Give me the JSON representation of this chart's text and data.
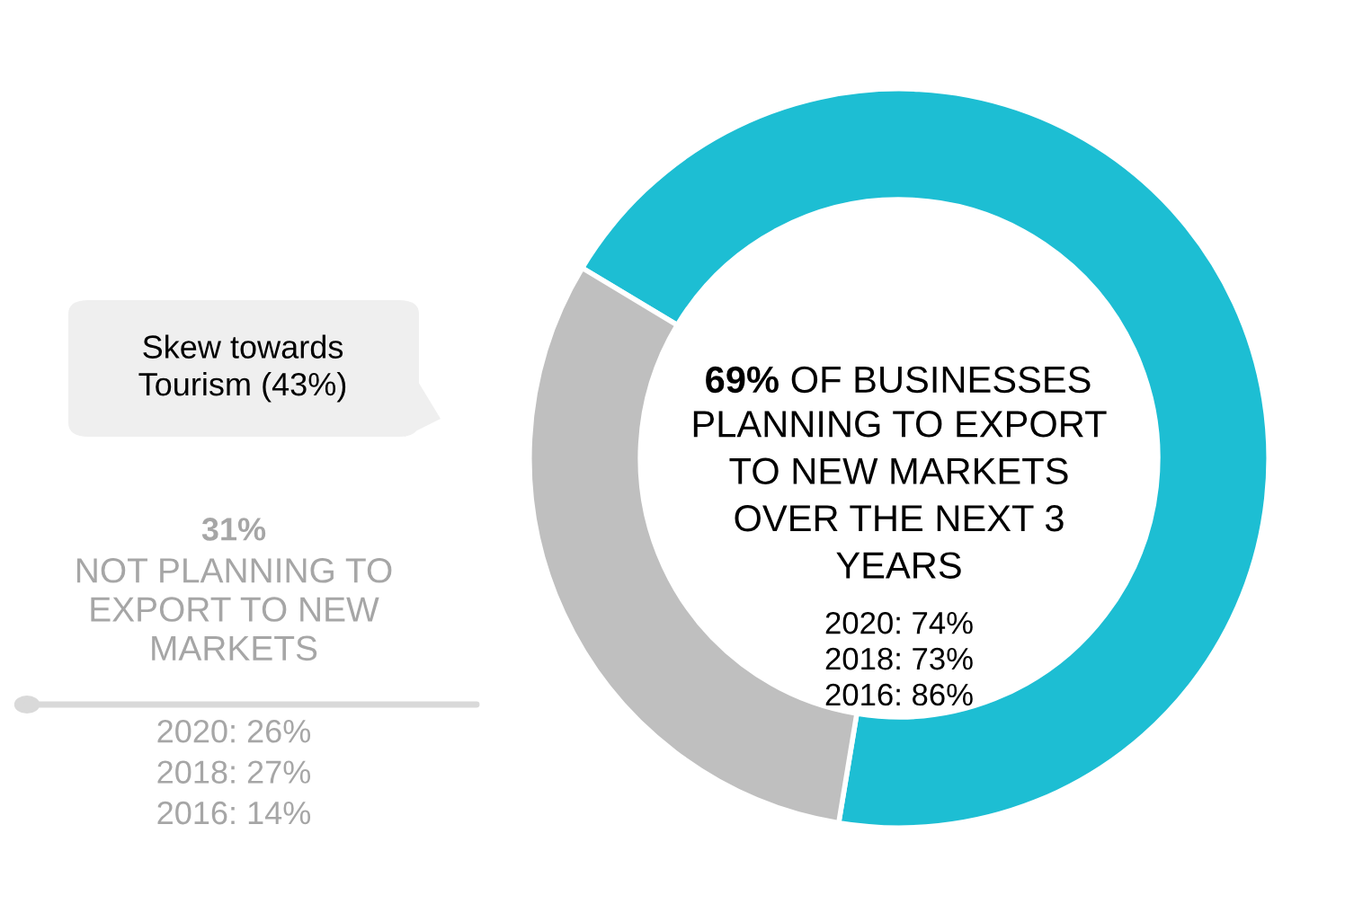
{
  "chart_data": {
    "type": "donut",
    "categories": [
      "OF BUSINESSES\nPLANNING TO EXPORT\nTO NEW MARKETS\nOVER THE NEXT 3\nYEARS",
      "NOT PLANNING TO\nEXPORT TO NEW\nMARKETS"
    ],
    "values": [
      69,
      31
    ],
    "value_labels": [
      "69%",
      "31%"
    ],
    "colors": [
      "#1dbed3",
      "#bfbfbf"
    ],
    "annotations": [
      "Skew towards\nTourism (43%)",
      "2020: 74%\n2018: 73%\n2016: 86%",
      "2020: 26%\n2018: 27%\n2016: 14%"
    ]
  }
}
